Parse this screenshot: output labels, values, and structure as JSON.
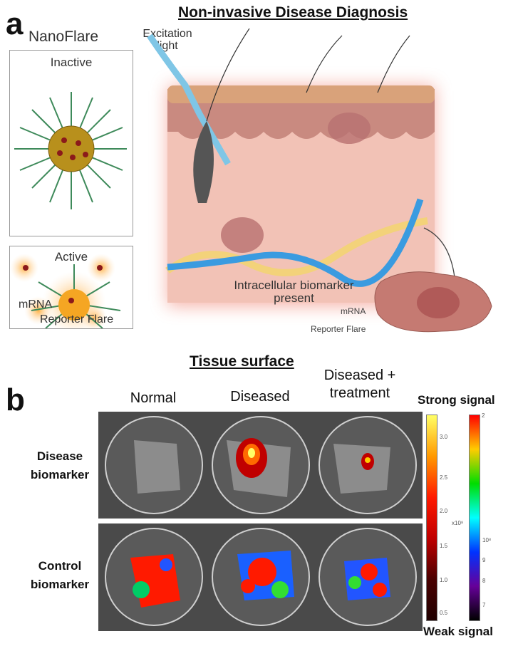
{
  "panel_a": {
    "letter": "a",
    "title": "Non-invasive Disease Diagnosis",
    "nanoflare_title": "NanoFlare",
    "inactive_label": "Inactive",
    "active_label": "Active",
    "active_mrna_label": "mRNA",
    "active_reporter_label": "Reporter Flare",
    "excitation_label": "Excitation light",
    "biomarker_label_line1": "Intracellular  biomarker",
    "biomarker_label_line2": "present",
    "cell_mrna_label": "mRNA",
    "cell_reporter_label": "Reporter Flare"
  },
  "panel_b": {
    "letter": "b",
    "title": "Tissue surface",
    "columns": [
      "Normal",
      "Diseased",
      "Diseased +\ntreatment"
    ],
    "rows": [
      "Disease\nbiomarker",
      "Control\nbiomarker"
    ],
    "strong_label": "Strong signal",
    "weak_label": "Weak signal",
    "colorbar_left": {
      "ticks": [
        "3.0",
        "2.5",
        "2.0",
        "1.5",
        "1.0",
        "0.5"
      ],
      "multiplier": "x10⁸",
      "colors": [
        "#ffff66",
        "#ff9900",
        "#ff1a00",
        "#c00000",
        "#4a0000",
        "#200000"
      ]
    },
    "colorbar_right": {
      "ticks": [
        "2",
        "10⁸",
        "9",
        "8",
        "7"
      ],
      "colors": [
        "#ff0000",
        "#ffcc00",
        "#00dd00",
        "#00ffff",
        "#0033ff",
        "#660099",
        "#000000"
      ]
    }
  }
}
